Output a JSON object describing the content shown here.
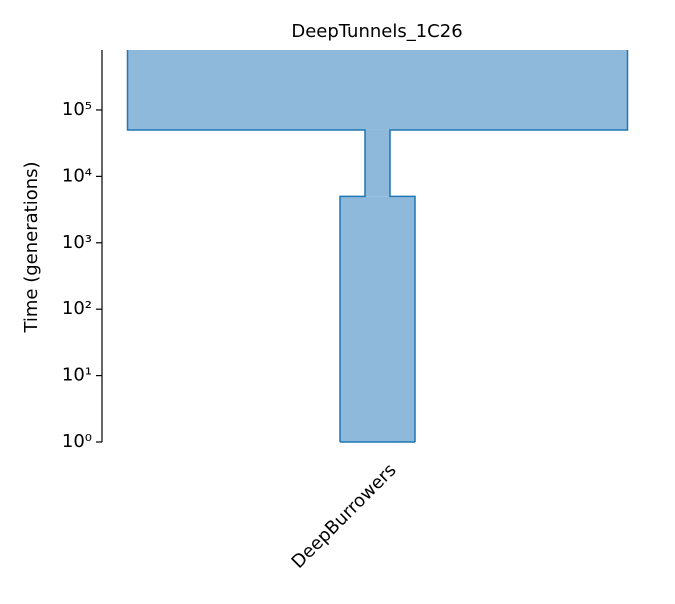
{
  "chart_data": {
    "type": "demes",
    "title": "DeepTunnels_1C26",
    "y_label": "Time (generations)",
    "categories": [
      "DeepBurrowers"
    ],
    "epochs": [
      {
        "end_time": 0,
        "size": 1500
      },
      {
        "end_time": 5000,
        "size": 500
      },
      {
        "end_time": 50000,
        "size": 10000
      }
    ],
    "color": "#8fb9da",
    "edge_color": "#1f77b4",
    "log_y": true,
    "ylim": [
      1,
      800000
    ],
    "yticks": [
      {
        "value": 1,
        "label": "10⁰"
      },
      {
        "value": 10,
        "label": "10¹"
      },
      {
        "value": 100,
        "label": "10²"
      },
      {
        "value": 1000,
        "label": "10³"
      },
      {
        "value": 10000,
        "label": "10⁴"
      },
      {
        "value": 100000,
        "label": "10⁵"
      }
    ]
  }
}
